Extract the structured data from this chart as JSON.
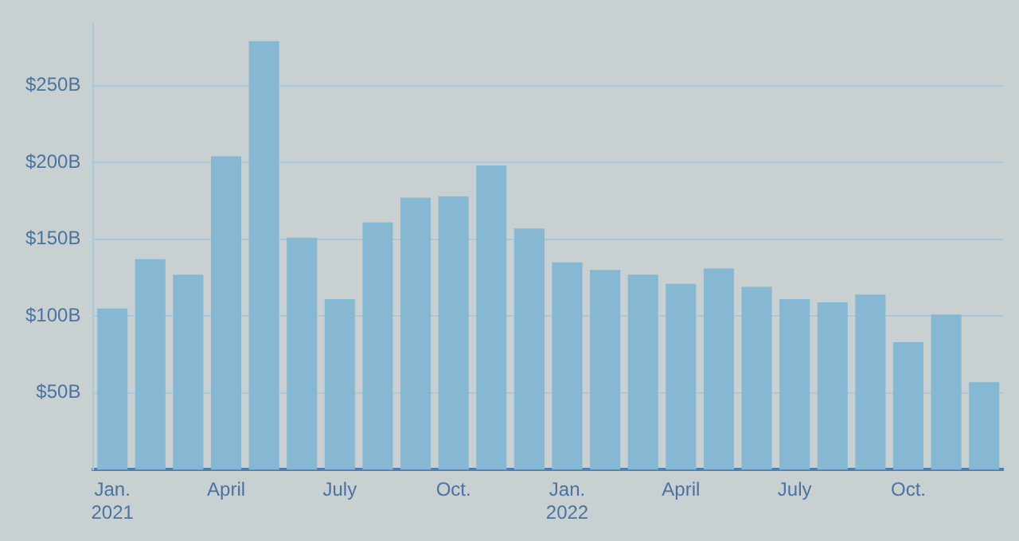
{
  "chart_data": {
    "type": "bar",
    "categories": [
      "Jan.\n2021",
      null,
      null,
      "April",
      null,
      null,
      "July",
      null,
      null,
      "Oct.",
      null,
      null,
      "Jan.\n2022",
      null,
      null,
      "April",
      null,
      null,
      "July",
      null,
      null,
      "Oct.",
      null,
      null
    ],
    "values": [
      105,
      137,
      127,
      204,
      279,
      151,
      111,
      161,
      177,
      178,
      198,
      157,
      135,
      130,
      127,
      121,
      131,
      119,
      111,
      109,
      114,
      83,
      101,
      57
    ],
    "color": "#86b8d3",
    "ylim": [
      0,
      290
    ],
    "yticks": [
      {
        "value": 50,
        "label": "$50B"
      },
      {
        "value": 100,
        "label": "$100B"
      },
      {
        "value": 150,
        "label": "$150B"
      },
      {
        "value": 200,
        "label": "$200B"
      },
      {
        "value": 250,
        "label": "$250B"
      }
    ],
    "grid": "y",
    "legend": false
  }
}
